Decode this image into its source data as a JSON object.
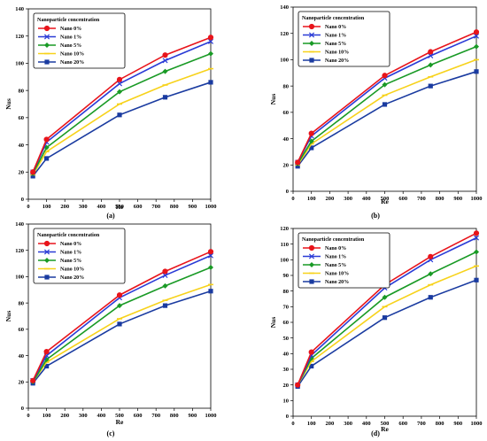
{
  "chart_data": [
    {
      "type": "line",
      "panel_label": "(a)",
      "xlabel": "Re",
      "ylabel": "Nus",
      "xlim": [
        0,
        1000
      ],
      "ylim": [
        0,
        140
      ],
      "x_ticks": [
        "0",
        "100",
        "200",
        "300",
        "400",
        "500",
        "600",
        "700",
        "800",
        "900",
        "1000"
      ],
      "y_ticks": [
        "0",
        "20",
        "40",
        "60",
        "80",
        "100",
        "120",
        "140"
      ],
      "legend_title": "Nanoparticle concentration",
      "legend_position": "top-left",
      "x": [
        25,
        100,
        500,
        750,
        1000
      ],
      "series": [
        {
          "name": "Nano 0%",
          "color": "#e8141b",
          "marker": "circle",
          "values": [
            20,
            44,
            88,
            106,
            119
          ]
        },
        {
          "name": "Nano 1%",
          "color": "#2a3bd6",
          "marker": "x",
          "values": [
            20,
            42,
            85,
            102,
            116
          ]
        },
        {
          "name": "Nano 5%",
          "color": "#199a25",
          "marker": "diamond",
          "values": [
            19,
            38,
            79,
            94,
            107
          ]
        },
        {
          "name": "Nano 10%",
          "color": "#f7d21b",
          "marker": "line",
          "values": [
            18,
            35,
            70,
            84,
            96
          ]
        },
        {
          "name": "Nano 20%",
          "color": "#1a3ba0",
          "marker": "square",
          "values": [
            17,
            30,
            62,
            75,
            86
          ]
        }
      ]
    },
    {
      "type": "line",
      "panel_label": "(b)",
      "xlabel": "Re",
      "ylabel": "Nus",
      "xlim": [
        0,
        1000
      ],
      "ylim": [
        0,
        140
      ],
      "x_ticks": [
        "0",
        "100",
        "200",
        "300",
        "400",
        "500",
        "600",
        "700",
        "800",
        "900",
        "1000"
      ],
      "y_ticks": [
        "0",
        "20",
        "40",
        "60",
        "80",
        "100",
        "120",
        "140"
      ],
      "legend_title": "Nanoparticle concentration",
      "legend_position": "top-left",
      "x": [
        25,
        100,
        500,
        750,
        1000
      ],
      "series": [
        {
          "name": "Nano 0%",
          "color": "#e8141b",
          "marker": "circle",
          "values": [
            22,
            44,
            88,
            106,
            121
          ]
        },
        {
          "name": "Nano 1%",
          "color": "#2a3bd6",
          "marker": "x",
          "values": [
            22,
            42,
            86,
            103,
            118
          ]
        },
        {
          "name": "Nano 5%",
          "color": "#199a25",
          "marker": "diamond",
          "values": [
            21,
            38,
            81,
            96,
            110
          ]
        },
        {
          "name": "Nano 10%",
          "color": "#f7d21b",
          "marker": "line",
          "values": [
            20,
            36,
            73,
            87,
            100
          ]
        },
        {
          "name": "Nano 20%",
          "color": "#1a3ba0",
          "marker": "square",
          "values": [
            19,
            33,
            66,
            80,
            91
          ]
        }
      ]
    },
    {
      "type": "line",
      "panel_label": "(c)",
      "xlabel": "Re",
      "ylabel": "Nus",
      "xlim": [
        0,
        1000
      ],
      "ylim": [
        0,
        140
      ],
      "x_ticks": [
        "0",
        "100",
        "200",
        "300",
        "400",
        "500",
        "600",
        "700",
        "800",
        "900",
        "1000"
      ],
      "y_ticks": [
        "0",
        "20",
        "40",
        "60",
        "80",
        "100",
        "120",
        "140"
      ],
      "legend_title": "Nanoparticle concentration",
      "legend_position": "top-left",
      "x": [
        25,
        100,
        500,
        750,
        1000
      ],
      "series": [
        {
          "name": "Nano 0%",
          "color": "#e8141b",
          "marker": "circle",
          "values": [
            21,
            43,
            86,
            104,
            119
          ]
        },
        {
          "name": "Nano 1%",
          "color": "#2a3bd6",
          "marker": "x",
          "values": [
            21,
            40,
            84,
            101,
            116
          ]
        },
        {
          "name": "Nano 5%",
          "color": "#199a25",
          "marker": "diamond",
          "values": [
            20,
            37,
            78,
            93,
            107
          ]
        },
        {
          "name": "Nano 10%",
          "color": "#f7d21b",
          "marker": "line",
          "values": [
            20,
            35,
            68,
            82,
            94
          ]
        },
        {
          "name": "Nano 20%",
          "color": "#1a3ba0",
          "marker": "square",
          "values": [
            19,
            32,
            64,
            78,
            89
          ]
        }
      ]
    },
    {
      "type": "line",
      "panel_label": "(d)",
      "xlabel": "Re",
      "ylabel": "Nus",
      "xlim": [
        0,
        1000
      ],
      "ylim": [
        0,
        120
      ],
      "x_ticks": [
        "0",
        "100",
        "200",
        "300",
        "400",
        "500",
        "600",
        "700",
        "800",
        "900",
        "1000"
      ],
      "y_ticks": [
        "0",
        "10",
        "20",
        "30",
        "40",
        "50",
        "60",
        "70",
        "80",
        "90",
        "100",
        "110",
        "120"
      ],
      "legend_title": "Nanoparticle concentration",
      "legend_position": "top-left",
      "x": [
        25,
        100,
        500,
        750,
        1000
      ],
      "series": [
        {
          "name": "Nano 0%",
          "color": "#e8141b",
          "marker": "circle",
          "values": [
            20,
            41,
            84,
            102,
            117
          ]
        },
        {
          "name": "Nano 1%",
          "color": "#2a3bd6",
          "marker": "x",
          "values": [
            20,
            39,
            82,
            100,
            114
          ]
        },
        {
          "name": "Nano 5%",
          "color": "#199a25",
          "marker": "diamond",
          "values": [
            20,
            37,
            76,
            91,
            105
          ]
        },
        {
          "name": "Nano 10%",
          "color": "#f7d21b",
          "marker": "line",
          "values": [
            20,
            35,
            70,
            84,
            96
          ]
        },
        {
          "name": "Nano 20%",
          "color": "#1a3ba0",
          "marker": "square",
          "values": [
            19,
            32,
            63,
            76,
            87
          ]
        }
      ]
    }
  ]
}
